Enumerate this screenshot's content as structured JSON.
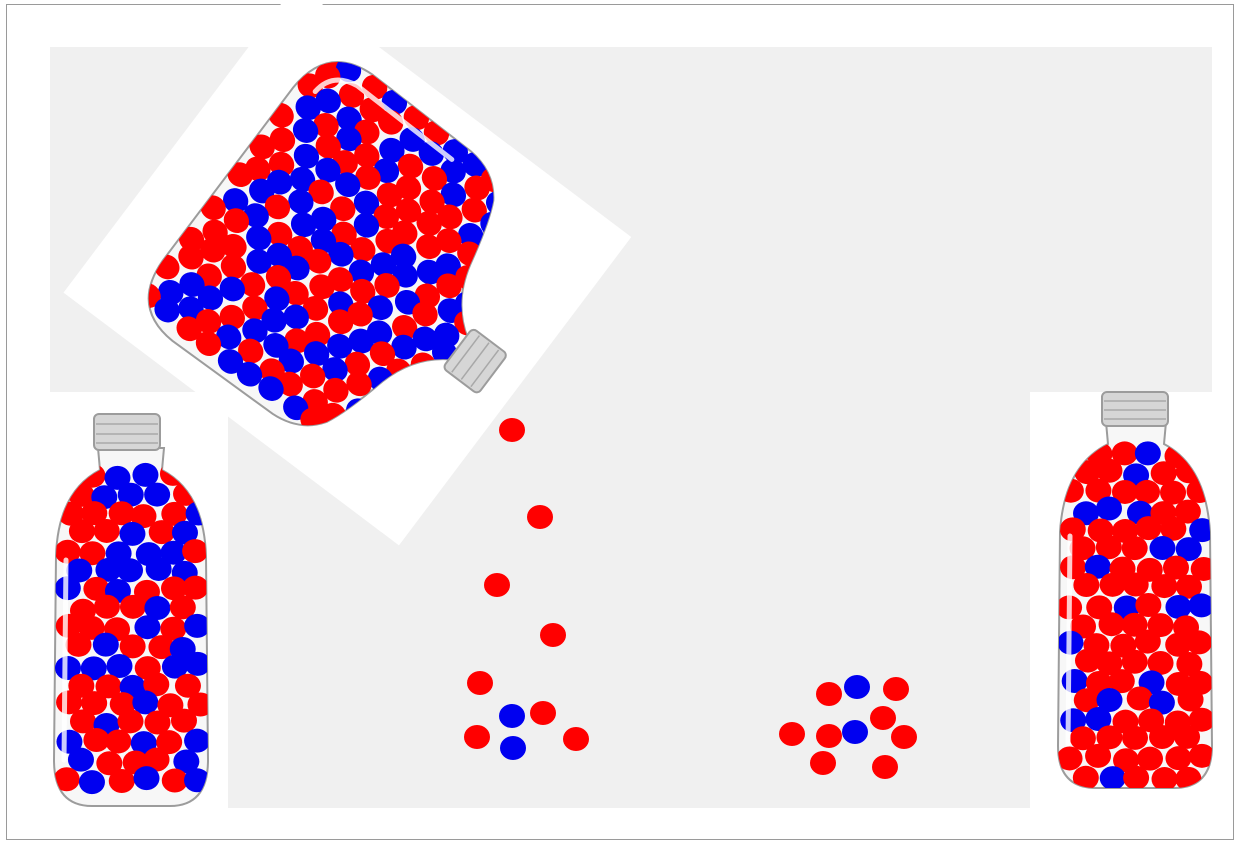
{
  "colors": {
    "frame_border": "#9a9a9a",
    "panel": "#f0f0f0",
    "white": "#ffffff",
    "bead_red": "#ff0000",
    "bead_blue": "#0000f0",
    "glass_stroke": "#9c9c9c",
    "glass_fill": "#f7f7f7",
    "cap_fill": "#d6d6d6"
  },
  "scene": {
    "falling_beads": [
      "red",
      "red",
      "red",
      "red",
      "red"
    ],
    "pile_left": [
      "blue",
      "red",
      "red",
      "blue",
      "red"
    ],
    "pile_right": [
      "red",
      "blue",
      "red",
      "red",
      "red",
      "blue",
      "red",
      "red",
      "red",
      "red"
    ]
  },
  "bottles": {
    "pouring": {
      "label": "pouring-bottle",
      "red_ratio": 0.55
    },
    "left": {
      "label": "left-bottle",
      "red_ratio": 0.55
    },
    "right": {
      "label": "right-bottle",
      "red_ratio": 0.75
    }
  }
}
